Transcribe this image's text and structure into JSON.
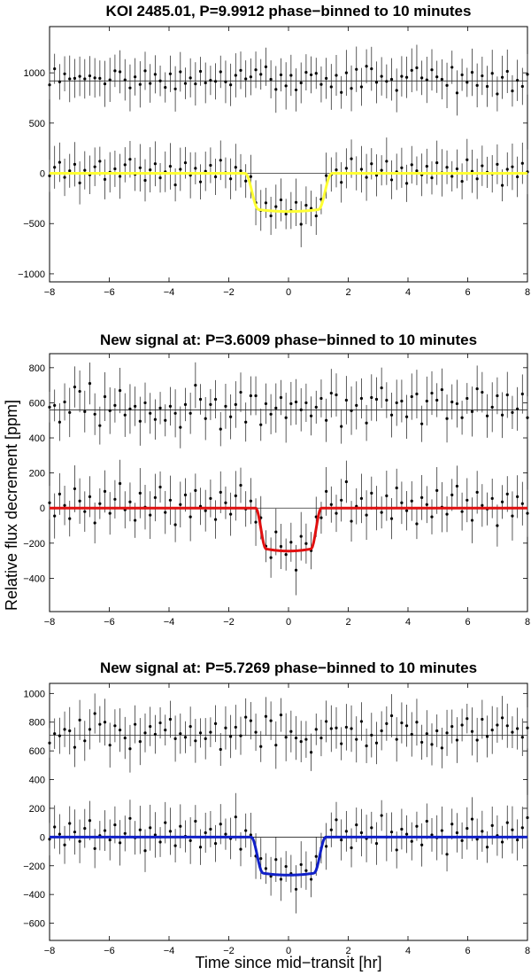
{
  "figure": {
    "ylabel": "Relative flux decrement [ppm]",
    "xlabel": "Time since mid−transit [hr]"
  },
  "chart_data": [
    {
      "type": "scatter",
      "title": "KOI 2485.01, P=9.9912 phase−binned to 10 minutes",
      "xlim": [
        -8,
        8
      ],
      "ylim": [
        -1080,
        1460
      ],
      "xticks": [
        -8,
        -6,
        -4,
        -2,
        0,
        2,
        4,
        6,
        8
      ],
      "yticks": [
        -1000,
        -500,
        0,
        500,
        1000
      ],
      "reference_lines": [
        0,
        920
      ],
      "offset_series_baseline": 920,
      "model_color": "#ffff33",
      "transit": {
        "depth": 380,
        "half_duration": 1.45,
        "ingress": 0.45
      },
      "error_bar_typical": 190,
      "residual_series": [
        -25,
        60,
        110,
        -40,
        25,
        90,
        -95,
        30,
        -15,
        65,
        120,
        -60,
        10,
        45,
        -30,
        85,
        140,
        -10,
        55,
        -70,
        35,
        95,
        -45,
        15,
        70,
        -115,
        40,
        105,
        -20,
        50,
        -85,
        20,
        80,
        -35,
        130,
        5,
        -55,
        60,
        25,
        -75,
        100,
        30,
        -5,
        75,
        -50,
        45,
        115,
        -25,
        10,
        90,
        -130,
        55,
        20,
        -60,
        65,
        110,
        -10,
        35,
        -90,
        50,
        145,
        0,
        40,
        -40,
        95,
        -20,
        30,
        120,
        -65,
        15,
        55,
        -100,
        85,
        25,
        -15,
        70,
        -45,
        105,
        5,
        60,
        -30,
        45,
        -80,
        135,
        20,
        -55,
        75,
        10,
        -5,
        90,
        -120,
        40,
        65,
        -35,
        100,
        15
      ]
    },
    {
      "type": "scatter",
      "title": "New signal at: P=3.6009 phase−binned to 10 minutes",
      "xlim": [
        -8,
        8
      ],
      "ylim": [
        -590,
        880
      ],
      "xticks": [
        -8,
        -6,
        -4,
        -2,
        0,
        2,
        4,
        6,
        8
      ],
      "yticks": [
        -400,
        -200,
        0,
        200,
        400,
        600,
        800
      ],
      "reference_lines": [
        0,
        560
      ],
      "offset_series_baseline": 560,
      "model_color": "#e01010",
      "transit": {
        "depth": 245,
        "half_duration": 1.1,
        "ingress": 0.35
      },
      "error_bar_typical": 115,
      "residual_series": [
        30,
        -45,
        80,
        15,
        -60,
        110,
        40,
        -20,
        65,
        -85,
        25,
        95,
        -30,
        50,
        140,
        -10,
        35,
        -70,
        85,
        5,
        -40,
        60,
        120,
        -25,
        45,
        -95,
        20,
        75,
        -50,
        100,
        10,
        -15,
        55,
        -65,
        90,
        30,
        -35,
        70,
        130,
        -5,
        40,
        -80,
        60,
        15,
        -45,
        105,
        25,
        -20,
        50,
        -110,
        80,
        35,
        -10,
        65,
        -55,
        95,
        20,
        -30,
        45,
        150,
        -75,
        10,
        55,
        -40,
        85,
        0,
        -25,
        70,
        -60,
        115,
        30,
        -15,
        40,
        -90,
        60,
        20,
        -50,
        100,
        5,
        -35,
        75,
        125,
        -20,
        45,
        -70,
        90,
        15,
        -5,
        55,
        -100,
        35,
        80,
        -45,
        65,
        25,
        -30
      ]
    },
    {
      "type": "scatter",
      "title": "New signal at: P=5.7269 phase−binned to 10 minutes",
      "xlim": [
        -8,
        8
      ],
      "ylim": [
        -720,
        1070
      ],
      "xticks": [
        -8,
        -6,
        -4,
        -2,
        0,
        2,
        4,
        6,
        8
      ],
      "yticks": [
        -600,
        -400,
        -200,
        0,
        200,
        400,
        600,
        800,
        1000
      ],
      "reference_lines": [
        0,
        710
      ],
      "offset_series_baseline": 710,
      "model_color": "#1020c8",
      "transit": {
        "depth": 265,
        "half_duration": 1.25,
        "ingress": 0.4
      },
      "error_bar_typical": 135,
      "residual_series": [
        -15,
        70,
        20,
        -55,
        95,
        35,
        -30,
        60,
        115,
        -80,
        10,
        45,
        -20,
        85,
        -40,
        25,
        130,
        -5,
        50,
        -95,
        65,
        15,
        -35,
        100,
        40,
        -60,
        75,
        5,
        -25,
        110,
        -70,
        30,
        55,
        -45,
        90,
        20,
        -10,
        140,
        -85,
        45,
        15,
        -50,
        80,
        35,
        -15,
        105,
        -30,
        60,
        10,
        -100,
        70,
        25,
        -40,
        95,
        5,
        -65,
        50,
        120,
        -20,
        40,
        -75,
        85,
        30,
        -10,
        65,
        -45,
        150,
        0,
        35,
        -90,
        55,
        20,
        -30,
        75,
        -55,
        110,
        15,
        -5,
        45,
        -120,
        90,
        30,
        -25,
        60,
        125,
        -15,
        40,
        -70,
        80,
        10,
        -35,
        100,
        50,
        -20,
        65,
        135
      ]
    }
  ]
}
